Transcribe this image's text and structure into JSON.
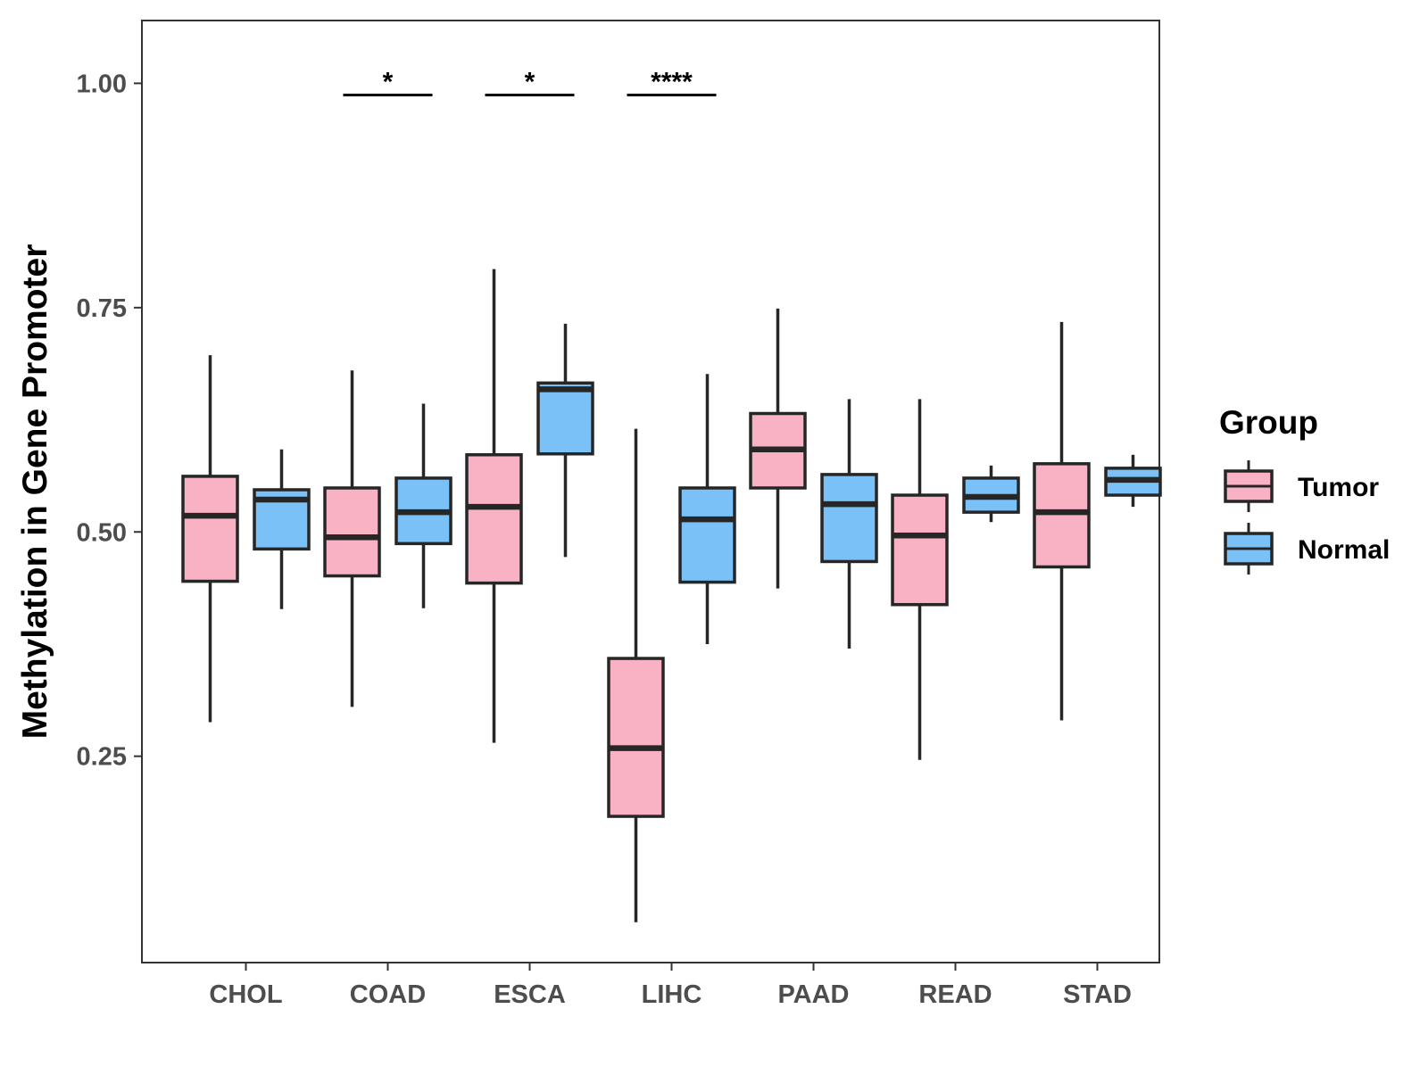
{
  "chart_data": {
    "type": "boxplot",
    "title": "",
    "xlabel": "",
    "ylabel": "Methylation in Gene Promoter",
    "ylim": [
      0.02,
      1.07
    ],
    "yticks": [
      "0.25",
      "0.50",
      "0.75",
      "1.00"
    ],
    "grid": false,
    "categories": [
      "CHOL",
      "COAD",
      "ESCA",
      "LIHC",
      "PAAD",
      "READ",
      "STAD"
    ],
    "legend": {
      "title": "Group",
      "placement": "right",
      "entries": [
        {
          "label": "Tumor",
          "color": "#F9B2C4"
        },
        {
          "label": "Normal",
          "color": "#79C1F7"
        }
      ]
    },
    "series": [
      {
        "name": "Tumor",
        "color": "#F9B2C4",
        "boxes": [
          {
            "category": "CHOL",
            "min": 0.288,
            "q1": 0.445,
            "median": 0.518,
            "q3": 0.562,
            "max": 0.697
          },
          {
            "category": "COAD",
            "min": 0.305,
            "q1": 0.451,
            "median": 0.494,
            "q3": 0.549,
            "max": 0.68
          },
          {
            "category": "ESCA",
            "min": 0.265,
            "q1": 0.443,
            "median": 0.528,
            "q3": 0.586,
            "max": 0.793
          },
          {
            "category": "LIHC",
            "min": 0.065,
            "q1": 0.183,
            "median": 0.259,
            "q3": 0.359,
            "max": 0.615
          },
          {
            "category": "PAAD",
            "min": 0.437,
            "q1": 0.549,
            "median": 0.592,
            "q3": 0.632,
            "max": 0.749
          },
          {
            "category": "READ",
            "min": 0.246,
            "q1": 0.419,
            "median": 0.496,
            "q3": 0.541,
            "max": 0.648
          },
          {
            "category": "STAD",
            "min": 0.29,
            "q1": 0.461,
            "median": 0.522,
            "q3": 0.576,
            "max": 0.734
          }
        ]
      },
      {
        "name": "Normal",
        "color": "#79C1F7",
        "boxes": [
          {
            "category": "CHOL",
            "min": 0.414,
            "q1": 0.481,
            "median": 0.536,
            "q3": 0.547,
            "max": 0.592
          },
          {
            "category": "COAD",
            "min": 0.415,
            "q1": 0.487,
            "median": 0.522,
            "q3": 0.56,
            "max": 0.643
          },
          {
            "category": "ESCA",
            "min": 0.472,
            "q1": 0.587,
            "median": 0.659,
            "q3": 0.666,
            "max": 0.732
          },
          {
            "category": "LIHC",
            "min": 0.375,
            "q1": 0.444,
            "median": 0.514,
            "q3": 0.549,
            "max": 0.676
          },
          {
            "category": "PAAD",
            "min": 0.37,
            "q1": 0.467,
            "median": 0.531,
            "q3": 0.564,
            "max": 0.648
          },
          {
            "category": "READ",
            "min": 0.511,
            "q1": 0.522,
            "median": 0.539,
            "q3": 0.56,
            "max": 0.574
          },
          {
            "category": "STAD",
            "min": 0.528,
            "q1": 0.541,
            "median": 0.558,
            "q3": 0.571,
            "max": 0.586
          }
        ]
      }
    ],
    "annotations": [
      {
        "category": "COAD",
        "label": "*",
        "y": 0.987
      },
      {
        "category": "ESCA",
        "label": "*",
        "y": 0.987
      },
      {
        "category": "LIHC",
        "label": "****",
        "y": 0.987
      }
    ]
  }
}
